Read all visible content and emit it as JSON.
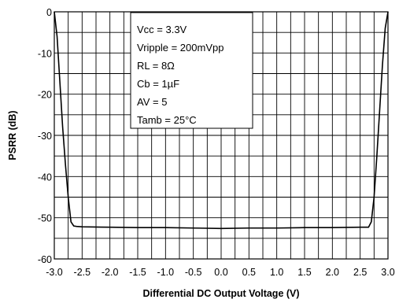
{
  "chart_data": {
    "type": "line",
    "title": "",
    "xlabel": "Differential DC Output Voltage (V)",
    "ylabel": "PSRR (dB)",
    "xlim": [
      -3.0,
      3.0
    ],
    "ylim": [
      -60,
      0
    ],
    "x_major_step": 0.5,
    "x_minor_step": 0.25,
    "y_major_step": 10,
    "y_minor_step": 5,
    "grid": true,
    "x_tick_labels": [
      "-3.0",
      "-2.5",
      "-2.0",
      "-1.5",
      "-1.0",
      "-0.5",
      "0.0",
      "0.5",
      "1.0",
      "1.5",
      "2.0",
      "2.5",
      "3.0"
    ],
    "y_tick_labels": [
      "0",
      "-10",
      "-20",
      "-30",
      "-40",
      "-50",
      "-60"
    ],
    "annotation_lines": [
      "Vcc = 3.3V",
      "Vripple = 200mVpp",
      "RL = 8Ω",
      "Cb = 1µF",
      "AV = 5",
      "Tamb = 25°C"
    ],
    "series": [
      {
        "color": "#000000",
        "x": [
          -3.0,
          -2.95,
          -2.9,
          -2.85,
          -2.8,
          -2.75,
          -2.7,
          -2.65,
          -2.6,
          -2.5,
          -2.0,
          -1.5,
          -1.0,
          -0.5,
          0.0,
          0.5,
          1.0,
          1.5,
          2.0,
          2.5,
          2.6,
          2.65,
          2.7,
          2.75,
          2.8,
          2.85,
          2.9,
          2.95,
          3.0
        ],
        "y": [
          0,
          -6,
          -17,
          -28,
          -37,
          -45,
          -51,
          -52,
          -52.1,
          -52.2,
          -52.3,
          -52.4,
          -52.4,
          -52.5,
          -52.6,
          -52.5,
          -52.5,
          -52.4,
          -52.4,
          -52.3,
          -52.3,
          -52.3,
          -51,
          -45,
          -35,
          -24,
          -13,
          -4,
          0
        ]
      }
    ]
  }
}
